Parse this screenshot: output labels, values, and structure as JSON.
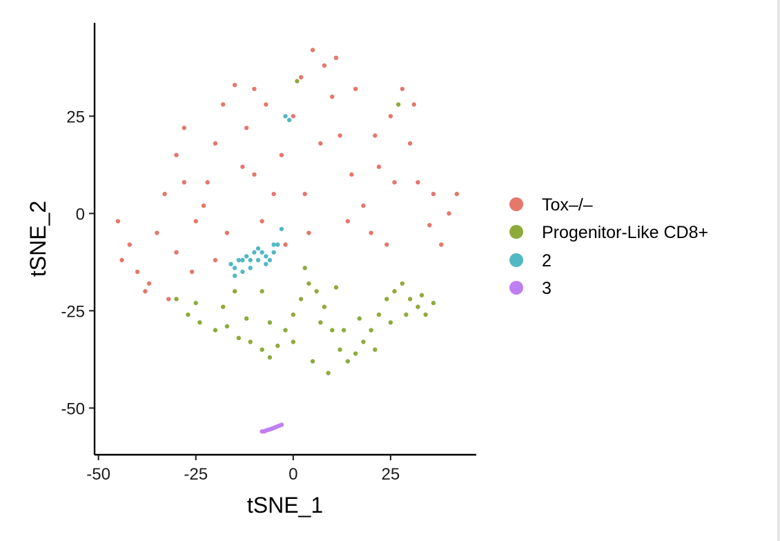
{
  "chart_data": {
    "type": "scatter",
    "title": "",
    "xlabel": "tSNE_1",
    "ylabel": "tSNE_2",
    "xlim": [
      -51,
      47
    ],
    "ylim": [
      -62,
      49
    ],
    "x_ticks": [
      -50,
      -25,
      0,
      25
    ],
    "y_ticks": [
      -50,
      -25,
      0,
      25
    ],
    "x_tick_labels": [
      "-50",
      "-25",
      "0",
      "25"
    ],
    "y_tick_labels": [
      "-50",
      "-25",
      "0",
      "25"
    ],
    "grid": false,
    "legend_position": "right",
    "series": [
      {
        "name": "Tox–/–",
        "color": "#E5776B",
        "points": [
          [
            -45,
            -2
          ],
          [
            -42,
            -8
          ],
          [
            -40,
            -15
          ],
          [
            -38,
            -20
          ],
          [
            -35,
            -5
          ],
          [
            -33,
            5
          ],
          [
            -30,
            15
          ],
          [
            -28,
            22
          ],
          [
            -25,
            -2
          ],
          [
            -22,
            8
          ],
          [
            -20,
            18
          ],
          [
            -18,
            28
          ],
          [
            -15,
            33
          ],
          [
            -12,
            22
          ],
          [
            -10,
            10
          ],
          [
            -8,
            -2
          ],
          [
            -5,
            5
          ],
          [
            -3,
            15
          ],
          [
            0,
            25
          ],
          [
            2,
            35
          ],
          [
            5,
            42
          ],
          [
            8,
            38
          ],
          [
            10,
            30
          ],
          [
            12,
            20
          ],
          [
            15,
            10
          ],
          [
            18,
            2
          ],
          [
            20,
            -5
          ],
          [
            22,
            12
          ],
          [
            25,
            25
          ],
          [
            28,
            32
          ],
          [
            30,
            18
          ],
          [
            32,
            8
          ],
          [
            35,
            -3
          ],
          [
            38,
            -8
          ],
          [
            40,
            0
          ],
          [
            42,
            5
          ],
          [
            -44,
            -12
          ],
          [
            -37,
            -18
          ],
          [
            -32,
            -22
          ],
          [
            -26,
            -15
          ],
          [
            -23,
            2
          ],
          [
            -17,
            -5
          ],
          [
            -13,
            12
          ],
          [
            -7,
            28
          ],
          [
            -2,
            -8
          ],
          [
            3,
            5
          ],
          [
            7,
            18
          ],
          [
            11,
            40
          ],
          [
            16,
            32
          ],
          [
            21,
            20
          ],
          [
            26,
            8
          ],
          [
            31,
            28
          ],
          [
            36,
            5
          ],
          [
            -30,
            -10
          ],
          [
            -28,
            8
          ],
          [
            -20,
            -12
          ],
          [
            -10,
            32
          ],
          [
            4,
            -5
          ],
          [
            14,
            -2
          ],
          [
            24,
            -8
          ]
        ]
      },
      {
        "name": "Progenitor-Like CD8+",
        "color": "#8EAA3B",
        "points": [
          [
            -30,
            -22
          ],
          [
            -27,
            -26
          ],
          [
            -24,
            -28
          ],
          [
            -20,
            -30
          ],
          [
            -17,
            -29
          ],
          [
            -14,
            -32
          ],
          [
            -11,
            -33
          ],
          [
            -8,
            -35
          ],
          [
            -6,
            -37
          ],
          [
            -4,
            -34
          ],
          [
            -2,
            -30
          ],
          [
            0,
            -26
          ],
          [
            2,
            -22
          ],
          [
            4,
            -18
          ],
          [
            6,
            -20
          ],
          [
            8,
            -24
          ],
          [
            10,
            -30
          ],
          [
            12,
            -35
          ],
          [
            14,
            -38
          ],
          [
            16,
            -36
          ],
          [
            18,
            -33
          ],
          [
            20,
            -30
          ],
          [
            22,
            -26
          ],
          [
            24,
            -22
          ],
          [
            26,
            -20
          ],
          [
            28,
            -18
          ],
          [
            30,
            -22
          ],
          [
            32,
            -24
          ],
          [
            34,
            -26
          ],
          [
            36,
            -23
          ],
          [
            -25,
            -23
          ],
          [
            -18,
            -24
          ],
          [
            -12,
            -27
          ],
          [
            -6,
            -28
          ],
          [
            0,
            -33
          ],
          [
            5,
            -38
          ],
          [
            9,
            -41
          ],
          [
            13,
            -30
          ],
          [
            17,
            -27
          ],
          [
            21,
            -35
          ],
          [
            25,
            -28
          ],
          [
            29,
            -26
          ],
          [
            33,
            -21
          ],
          [
            3,
            -14
          ],
          [
            -8,
            -20
          ],
          [
            11,
            -19
          ],
          [
            7,
            -28
          ],
          [
            -15,
            -20
          ],
          [
            1,
            34
          ],
          [
            27,
            28
          ]
        ]
      },
      {
        "name": "2",
        "color": "#52B8C2",
        "points": [
          [
            -16,
            -13
          ],
          [
            -15,
            -14
          ],
          [
            -14,
            -12
          ],
          [
            -13,
            -12
          ],
          [
            -12,
            -11
          ],
          [
            -11,
            -12
          ],
          [
            -10,
            -10
          ],
          [
            -9,
            -9
          ],
          [
            -8,
            -10
          ],
          [
            -7,
            -11
          ],
          [
            -6,
            -12
          ],
          [
            -5,
            -10
          ],
          [
            -4,
            -8
          ],
          [
            -3,
            -4
          ],
          [
            -15,
            -16
          ],
          [
            -13,
            -15
          ],
          [
            -11,
            -14
          ],
          [
            -9,
            -12
          ],
          [
            -7,
            -13
          ],
          [
            -5,
            -8
          ],
          [
            -1,
            24
          ],
          [
            -2,
            25
          ]
        ]
      },
      {
        "name": "3",
        "color": "#BF7FF0",
        "points": [
          [
            -8,
            -56
          ],
          [
            -7.5,
            -56
          ],
          [
            -7,
            -55.8
          ],
          [
            -6.5,
            -55.6
          ],
          [
            -6,
            -55.5
          ],
          [
            -5.5,
            -55.3
          ],
          [
            -5,
            -55.1
          ],
          [
            -4.5,
            -54.9
          ],
          [
            -4,
            -54.7
          ],
          [
            -3.5,
            -54.5
          ],
          [
            -3,
            -54.3
          ]
        ]
      }
    ]
  }
}
